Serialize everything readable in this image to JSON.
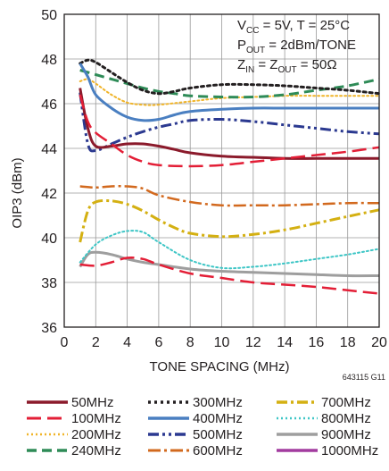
{
  "chart_data": {
    "type": "line",
    "title": "",
    "xlabel": "TONE SPACING (MHz)",
    "ylabel": "OIP3 (dBm)",
    "xlim": [
      0,
      20
    ],
    "ylim": [
      36,
      50
    ],
    "xticks": [
      "0",
      "2",
      "4",
      "6",
      "8",
      "10",
      "12",
      "14",
      "16",
      "18",
      "20"
    ],
    "yticks": [
      "36",
      "38",
      "40",
      "42",
      "44",
      "46",
      "48",
      "50"
    ],
    "grid": true,
    "legend_placement": "bottom",
    "annotations": {
      "vcc_prefix": "V",
      "vcc_sub": "CC",
      "vcc_rest": " = 5V, T = 25°C",
      "pout_prefix": "P",
      "pout_sub": "OUT",
      "pout_rest": " = 2dBm/TONE",
      "zin_prefix": "Z",
      "zin_sub": "IN",
      "zmid": " = Z",
      "zout_sub": "OUT",
      "zrest": " = 50Ω"
    },
    "figure_id": "643115 G11",
    "series": [
      {
        "name": "50MHz",
        "color": "#8b1a2b",
        "dash": "",
        "width": 3,
        "x": [
          1,
          1.5,
          2,
          3,
          4,
          5,
          6,
          7,
          8,
          10,
          12,
          14,
          16,
          18,
          20
        ],
        "y": [
          46.7,
          44.9,
          44.1,
          44.1,
          44.2,
          44.2,
          44.1,
          43.95,
          43.8,
          43.65,
          43.6,
          43.55,
          43.55,
          43.55,
          43.55
        ]
      },
      {
        "name": "100MHz",
        "color": "#e31e36",
        "dash": "16,7",
        "width": 2.5,
        "x": [
          1,
          1.5,
          2,
          3,
          4,
          5,
          6,
          8,
          10,
          12,
          14,
          16,
          18,
          20
        ],
        "y": [
          46.4,
          45.2,
          44.7,
          44.2,
          43.7,
          43.4,
          43.25,
          43.2,
          43.25,
          43.4,
          43.55,
          43.7,
          43.85,
          44.05
        ]
      },
      {
        "name": "200MHz",
        "color": "#f0b429",
        "dash": "2,3",
        "width": 2,
        "x": [
          1,
          1.5,
          2,
          3,
          4,
          5,
          6,
          8,
          10,
          12,
          14,
          16,
          18,
          20
        ],
        "y": [
          47.0,
          47.1,
          46.9,
          46.4,
          46.05,
          45.95,
          45.95,
          46.1,
          46.25,
          46.3,
          46.35,
          46.35,
          46.35,
          46.35
        ]
      },
      {
        "name": "240MHz",
        "color": "#2e8b57",
        "dash": "11,6",
        "width": 3,
        "x": [
          1,
          2,
          3,
          4,
          5,
          6,
          7,
          8,
          10,
          12,
          14,
          16,
          18,
          20
        ],
        "y": [
          47.5,
          47.3,
          47.1,
          46.9,
          46.7,
          46.55,
          46.45,
          46.35,
          46.3,
          46.3,
          46.4,
          46.6,
          46.8,
          47.1
        ]
      },
      {
        "name": "300MHz",
        "color": "#231f20",
        "dash": "3,4",
        "width": 3,
        "x": [
          1,
          1.5,
          2,
          3,
          4,
          5,
          6,
          7,
          8,
          10,
          12,
          14,
          16,
          18,
          20
        ],
        "y": [
          47.8,
          47.95,
          47.85,
          47.4,
          46.95,
          46.6,
          46.45,
          46.55,
          46.7,
          46.85,
          46.85,
          46.8,
          46.7,
          46.6,
          46.45
        ]
      },
      {
        "name": "400MHz",
        "color": "#4a7fc1",
        "dash": "",
        "width": 3,
        "x": [
          1,
          1.5,
          2,
          3,
          4,
          5,
          6,
          7,
          8,
          10,
          12,
          14,
          16,
          18,
          20
        ],
        "y": [
          47.8,
          47.2,
          46.4,
          45.8,
          45.4,
          45.25,
          45.3,
          45.5,
          45.65,
          45.75,
          45.8,
          45.8,
          45.8,
          45.8,
          45.8
        ]
      },
      {
        "name": "500MHz",
        "color": "#2b3990",
        "dash": "12,4,3,4,3,4",
        "width": 3,
        "x": [
          1,
          1.5,
          2,
          3,
          4,
          5,
          6,
          7,
          8,
          10,
          12,
          14,
          16,
          18,
          20
        ],
        "y": [
          46.5,
          44.2,
          43.9,
          44.2,
          44.5,
          44.75,
          44.95,
          45.1,
          45.25,
          45.3,
          45.2,
          45.05,
          44.9,
          44.75,
          44.65
        ]
      },
      {
        "name": "600MHz",
        "color": "#d2691e",
        "dash": "14,4,3,4",
        "width": 2.5,
        "x": [
          1,
          2,
          3,
          4,
          5,
          6,
          8,
          10,
          12,
          14,
          16,
          18,
          20
        ],
        "y": [
          42.3,
          42.25,
          42.3,
          42.3,
          42.2,
          41.9,
          41.6,
          41.45,
          41.45,
          41.45,
          41.5,
          41.55,
          41.55
        ]
      },
      {
        "name": "700MHz",
        "color": "#d4b012",
        "dash": "12,4,3,4",
        "width": 3,
        "x": [
          1,
          1.5,
          2,
          3,
          4,
          5,
          6,
          7,
          8,
          10,
          12,
          14,
          16,
          18,
          20
        ],
        "y": [
          39.8,
          41.2,
          41.6,
          41.65,
          41.5,
          41.2,
          40.8,
          40.45,
          40.2,
          40.05,
          40.15,
          40.35,
          40.65,
          40.95,
          41.25
        ]
      },
      {
        "name": "800MHz",
        "color": "#3ec6c6",
        "dash": "2,3",
        "width": 2,
        "x": [
          1,
          2,
          3,
          4,
          5,
          6,
          8,
          10,
          12,
          14,
          16,
          18,
          20
        ],
        "y": [
          38.9,
          39.7,
          40.1,
          40.3,
          40.25,
          39.8,
          39.0,
          38.65,
          38.7,
          38.85,
          39.05,
          39.25,
          39.5
        ]
      },
      {
        "name": "900MHz",
        "color": "#9e9e9e",
        "dash": "",
        "width": 3,
        "x": [
          1,
          1.5,
          2,
          3,
          4,
          5,
          6,
          8,
          10,
          12,
          14,
          16,
          18,
          20
        ],
        "y": [
          38.7,
          39.25,
          39.35,
          39.25,
          39.05,
          38.9,
          38.8,
          38.6,
          38.5,
          38.45,
          38.4,
          38.35,
          38.3,
          38.3
        ]
      },
      {
        "name": "1000MHz",
        "color": "#a23b9f",
        "dash": "",
        "width": 3,
        "x": [],
        "y": []
      }
    ],
    "extra_lines": [
      {
        "of": "100MHz",
        "x": [
          1,
          2,
          3,
          4,
          5,
          6,
          8,
          10,
          12,
          14,
          16,
          18,
          20
        ],
        "y": [
          38.8,
          38.75,
          38.9,
          39.1,
          39.05,
          38.8,
          38.4,
          38.2,
          38.0,
          37.9,
          37.8,
          37.65,
          37.5
        ]
      }
    ],
    "legend_columns": [
      [
        "50MHz",
        "100MHz",
        "200MHz",
        "240MHz"
      ],
      [
        "300MHz",
        "400MHz",
        "500MHz",
        "600MHz"
      ],
      [
        "700MHz",
        "800MHz",
        "900MHz",
        "1000MHz"
      ]
    ]
  }
}
